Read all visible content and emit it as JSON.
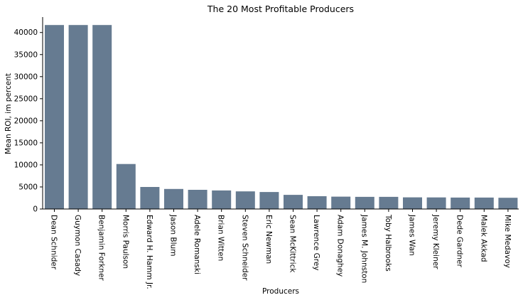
{
  "chart_data": {
    "type": "bar",
    "title": "The 20 Most Profitable Producers",
    "xlabel": "Producers",
    "ylabel": "Mean ROI, im percent",
    "categories": [
      "Dean Schnider",
      "Guymon Casady",
      "Benjamin Forkner",
      "Morris Paulson",
      "Edward H. Hamm Jr.",
      "Jason Blum",
      "Adele Romanski",
      "Brian Witten",
      "Steven Schneider",
      "Eric Newman",
      "Sean McKittrick",
      "Lawrence Grey",
      "Adam Donaghey",
      "James M. Johnston",
      "Toby Halbrooks",
      "James Wan",
      "Jeremy Kleiner",
      "Dede Gardner",
      "Malek Akkad",
      "Mike Medavoy"
    ],
    "values": [
      41700,
      41700,
      41700,
      10200,
      5000,
      4550,
      4350,
      4200,
      4000,
      3850,
      3200,
      2900,
      2800,
      2750,
      2750,
      2650,
      2620,
      2600,
      2600,
      2550
    ],
    "ylim": [
      0,
      43500
    ],
    "yticks": [
      0,
      5000,
      10000,
      15000,
      20000,
      25000,
      30000,
      35000,
      40000
    ],
    "grid": false,
    "bar_color": "#667b91"
  }
}
